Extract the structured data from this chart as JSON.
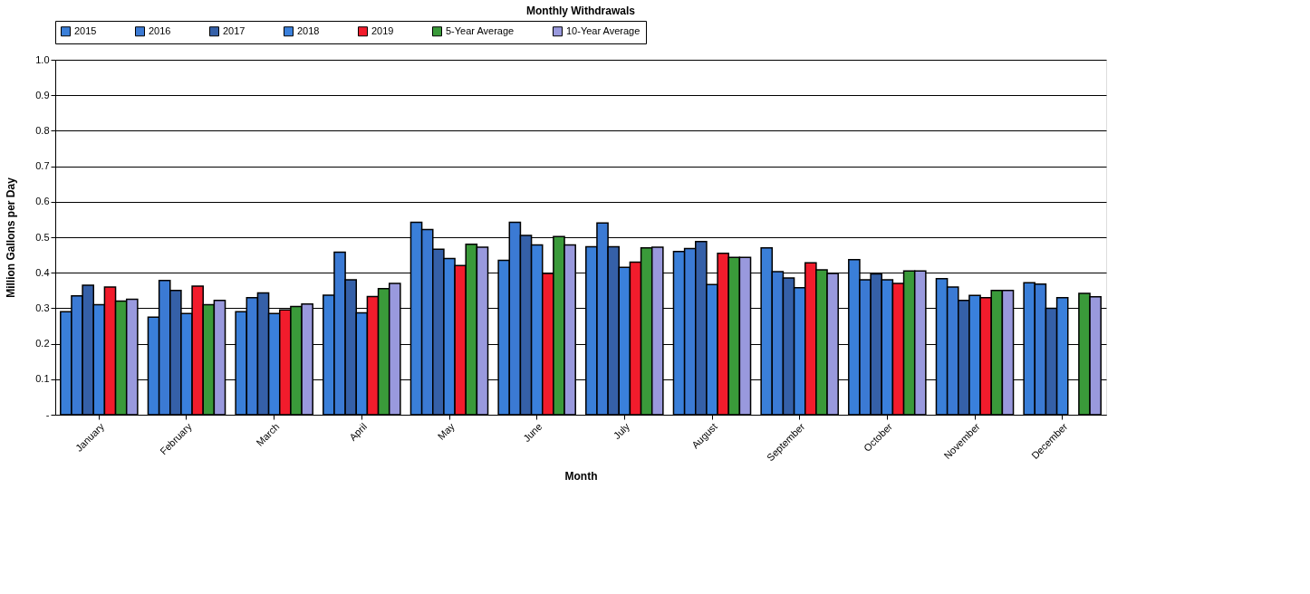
{
  "chart_data": {
    "type": "bar",
    "title": "Monthly Withdrawals",
    "xlabel": "Month",
    "ylabel": "Million Gallons per Day",
    "categories": [
      "January",
      "February",
      "March",
      "April",
      "May",
      "June",
      "July",
      "August",
      "September",
      "October",
      "November",
      "December"
    ],
    "series": [
      {
        "name": "2015",
        "color": "#3a7fd9",
        "values": [
          0.29,
          0.275,
          0.29,
          0.337,
          0.542,
          0.435,
          0.473,
          0.46,
          0.47,
          0.437,
          0.383,
          0.372
        ]
      },
      {
        "name": "2016",
        "color": "#3b7ad4",
        "values": [
          0.335,
          0.378,
          0.33,
          0.458,
          0.522,
          0.542,
          0.54,
          0.468,
          0.403,
          0.38,
          0.36,
          0.368
        ]
      },
      {
        "name": "2017",
        "color": "#3560a8",
        "values": [
          0.365,
          0.35,
          0.343,
          0.38,
          0.466,
          0.505,
          0.473,
          0.488,
          0.385,
          0.397,
          0.322,
          0.3
        ]
      },
      {
        "name": "2018",
        "color": "#3a80dc",
        "values": [
          0.31,
          0.285,
          0.285,
          0.287,
          0.44,
          0.478,
          0.415,
          0.367,
          0.358,
          0.38,
          0.336,
          0.33
        ]
      },
      {
        "name": "2019",
        "color": "#f21c2c",
        "values": [
          0.36,
          0.362,
          0.295,
          0.333,
          0.42,
          0.398,
          0.43,
          0.455,
          0.428,
          0.37,
          0.33,
          null
        ]
      },
      {
        "name": "5-Year Average",
        "color": "#3a9a3a",
        "values": [
          0.32,
          0.31,
          0.305,
          0.355,
          0.48,
          0.502,
          0.47,
          0.443,
          0.408,
          0.405,
          0.35,
          0.342
        ]
      },
      {
        "name": "10-Year Average",
        "color": "#9999dd",
        "values": [
          0.325,
          0.322,
          0.312,
          0.37,
          0.472,
          0.478,
          0.472,
          0.443,
          0.398,
          0.405,
          0.35,
          0.332
        ]
      }
    ],
    "ylim": [
      0,
      1.0
    ],
    "yticks": [
      {
        "value": 0,
        "label": "-"
      },
      0.1,
      0.2,
      0.3,
      0.4,
      0.5,
      0.6,
      0.7,
      0.8,
      0.9,
      {
        "value": 1.0,
        "label": "1.0"
      }
    ],
    "grid": "y",
    "legend": "top"
  }
}
